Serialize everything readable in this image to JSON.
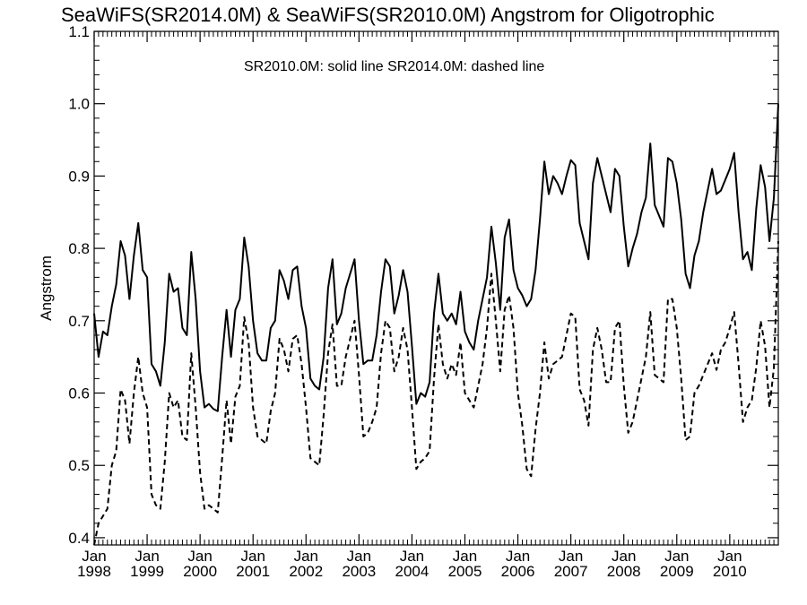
{
  "chart_data": {
    "type": "line",
    "title": "SeaWiFS(SR2014.0M) & SeaWiFS(SR2010.0M)  Angstrom for Oligotrophic",
    "annotation": "SR2010.0M: solid line   SR2014.0M: dashed line",
    "xlabel": "",
    "ylabel": "Angstrom",
    "xlim": [
      1998.0,
      2010.9167
    ],
    "ylim": [
      0.39,
      1.1
    ],
    "yticks": [
      0.4,
      0.5,
      0.6,
      0.7,
      0.8,
      0.9,
      1.0,
      1.1
    ],
    "ytick_labels": [
      "0.4",
      "0.5",
      "0.6",
      "0.7",
      "0.8",
      "0.9",
      "1.0",
      "1.1"
    ],
    "xticks": [
      {
        "value": 1998,
        "month": "Jan",
        "year": "1998"
      },
      {
        "value": 1999,
        "month": "Jan",
        "year": "1999"
      },
      {
        "value": 2000,
        "month": "Jan",
        "year": "2000"
      },
      {
        "value": 2001,
        "month": "Jan",
        "year": "2001"
      },
      {
        "value": 2002,
        "month": "Jan",
        "year": "2002"
      },
      {
        "value": 2003,
        "month": "Jan",
        "year": "2003"
      },
      {
        "value": 2004,
        "month": "Jan",
        "year": "2004"
      },
      {
        "value": 2005,
        "month": "Jan",
        "year": "2005"
      },
      {
        "value": 2006,
        "month": "Jan",
        "year": "2006"
      },
      {
        "value": 2007,
        "month": "Jan",
        "year": "2007"
      },
      {
        "value": 2008,
        "month": "Jan",
        "year": "2008"
      },
      {
        "value": 2009,
        "month": "Jan",
        "year": "2009"
      },
      {
        "value": 2010,
        "month": "Jan",
        "year": "2010"
      }
    ],
    "grid": false,
    "x_start": 1998.0,
    "x_step_months": 1,
    "series": [
      {
        "name": "SR2010.0M",
        "style": "solid",
        "color": "#000000",
        "values": [
          0.71,
          0.65,
          0.685,
          0.68,
          0.72,
          0.75,
          0.81,
          0.79,
          0.73,
          0.79,
          0.835,
          0.77,
          0.76,
          0.64,
          0.63,
          0.61,
          0.67,
          0.765,
          0.74,
          0.745,
          0.69,
          0.68,
          0.795,
          0.73,
          0.63,
          0.58,
          0.585,
          0.578,
          0.575,
          0.65,
          0.715,
          0.65,
          0.715,
          0.73,
          0.815,
          0.775,
          0.7,
          0.655,
          0.645,
          0.645,
          0.69,
          0.7,
          0.77,
          0.755,
          0.73,
          0.77,
          0.775,
          0.72,
          0.69,
          0.62,
          0.61,
          0.605,
          0.65,
          0.745,
          0.785,
          0.695,
          0.71,
          0.745,
          0.765,
          0.785,
          0.7,
          0.64,
          0.645,
          0.645,
          0.68,
          0.74,
          0.785,
          0.775,
          0.71,
          0.735,
          0.77,
          0.74,
          0.665,
          0.585,
          0.6,
          0.595,
          0.615,
          0.71,
          0.765,
          0.71,
          0.7,
          0.71,
          0.695,
          0.74,
          0.685,
          0.67,
          0.66,
          0.7,
          0.73,
          0.76,
          0.83,
          0.78,
          0.715,
          0.815,
          0.84,
          0.77,
          0.745,
          0.735,
          0.72,
          0.73,
          0.77,
          0.84,
          0.92,
          0.875,
          0.9,
          0.89,
          0.875,
          0.9,
          0.922,
          0.915,
          0.835,
          0.81,
          0.785,
          0.89,
          0.925,
          0.9,
          0.875,
          0.85,
          0.91,
          0.9,
          0.83,
          0.775,
          0.8,
          0.82,
          0.85,
          0.87,
          0.945,
          0.86,
          0.845,
          0.83,
          0.925,
          0.92,
          0.89,
          0.84,
          0.765,
          0.745,
          0.79,
          0.81,
          0.85,
          0.88,
          0.91,
          0.875,
          0.88,
          0.895,
          0.91,
          0.932,
          0.85,
          0.785,
          0.795,
          0.77,
          0.855,
          0.915,
          0.885,
          0.81,
          0.87,
          1.0
        ]
      },
      {
        "name": "SR2014.0M",
        "style": "dashed",
        "color": "#000000",
        "values": [
          0.39,
          0.42,
          0.43,
          0.44,
          0.5,
          0.52,
          0.605,
          0.59,
          0.53,
          0.6,
          0.65,
          0.6,
          0.58,
          0.46,
          0.445,
          0.44,
          0.505,
          0.6,
          0.58,
          0.59,
          0.54,
          0.535,
          0.655,
          0.58,
          0.49,
          0.44,
          0.445,
          0.44,
          0.435,
          0.51,
          0.59,
          0.53,
          0.595,
          0.61,
          0.705,
          0.67,
          0.58,
          0.54,
          0.535,
          0.53,
          0.575,
          0.6,
          0.675,
          0.66,
          0.63,
          0.675,
          0.68,
          0.64,
          0.58,
          0.51,
          0.505,
          0.5,
          0.57,
          0.655,
          0.695,
          0.61,
          0.61,
          0.65,
          0.675,
          0.7,
          0.625,
          0.54,
          0.545,
          0.56,
          0.58,
          0.655,
          0.7,
          0.69,
          0.63,
          0.65,
          0.69,
          0.66,
          0.58,
          0.495,
          0.505,
          0.51,
          0.52,
          0.62,
          0.695,
          0.64,
          0.62,
          0.64,
          0.625,
          0.67,
          0.6,
          0.59,
          0.58,
          0.61,
          0.64,
          0.69,
          0.765,
          0.7,
          0.63,
          0.715,
          0.735,
          0.69,
          0.6,
          0.555,
          0.495,
          0.485,
          0.55,
          0.6,
          0.67,
          0.62,
          0.64,
          0.645,
          0.65,
          0.68,
          0.71,
          0.705,
          0.605,
          0.59,
          0.555,
          0.66,
          0.69,
          0.66,
          0.615,
          0.615,
          0.69,
          0.7,
          0.61,
          0.545,
          0.56,
          0.59,
          0.62,
          0.65,
          0.712,
          0.625,
          0.62,
          0.615,
          0.73,
          0.73,
          0.69,
          0.62,
          0.535,
          0.54,
          0.6,
          0.61,
          0.625,
          0.64,
          0.655,
          0.632,
          0.66,
          0.67,
          0.69,
          0.712,
          0.64,
          0.56,
          0.58,
          0.59,
          0.635,
          0.7,
          0.665,
          0.58,
          0.635,
          0.81
        ]
      }
    ]
  }
}
